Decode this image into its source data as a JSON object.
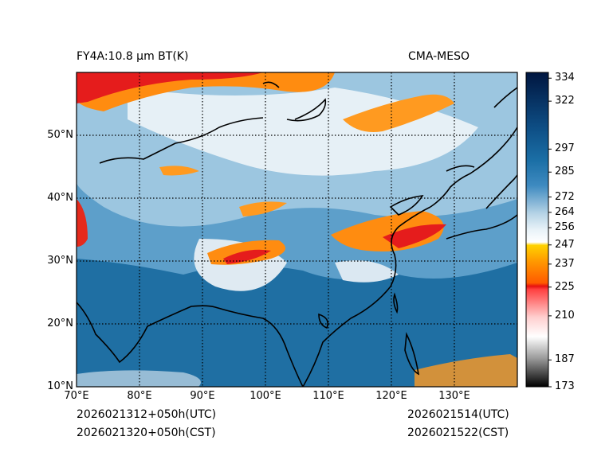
{
  "title": {
    "left": "FY4A:10.8 µm BT(K)",
    "right": "CMA-MESO"
  },
  "footer": {
    "init_utc": "2026021312+050h(UTC)",
    "init_cst": "2026021320+050h(CST)",
    "valid_utc": "2026021514(UTC)",
    "valid_cst": "2026021522(CST)"
  },
  "map": {
    "lon_range": [
      70,
      140
    ],
    "lat_range": [
      10,
      60
    ],
    "lon_ticks": [
      "70°E",
      "80°E",
      "90°E",
      "100°E",
      "110°E",
      "120°E",
      "130°E"
    ],
    "lat_ticks": [
      "10°N",
      "20°N",
      "30°N",
      "40°N",
      "50°N"
    ],
    "grid_lon": [
      80,
      90,
      100,
      110,
      120,
      130
    ],
    "grid_lat": [
      20,
      30,
      40,
      50
    ],
    "colors": {
      "ocean": "#1f6fa3",
      "land": "#5a9ec9",
      "cold": "#e8f0f6",
      "cloud_high": "#ff8c10",
      "cloud_top": "#e51c1c",
      "coast": "#000000"
    }
  },
  "colorbar": {
    "range": [
      173,
      337
    ],
    "ticks": [
      "334",
      "322",
      "297",
      "285",
      "272",
      "264",
      "256",
      "247",
      "237",
      "225",
      "210",
      "187",
      "173"
    ],
    "tick_values": [
      334,
      322,
      297,
      285,
      272,
      264,
      256,
      247,
      237,
      225,
      210,
      187,
      173
    ]
  }
}
